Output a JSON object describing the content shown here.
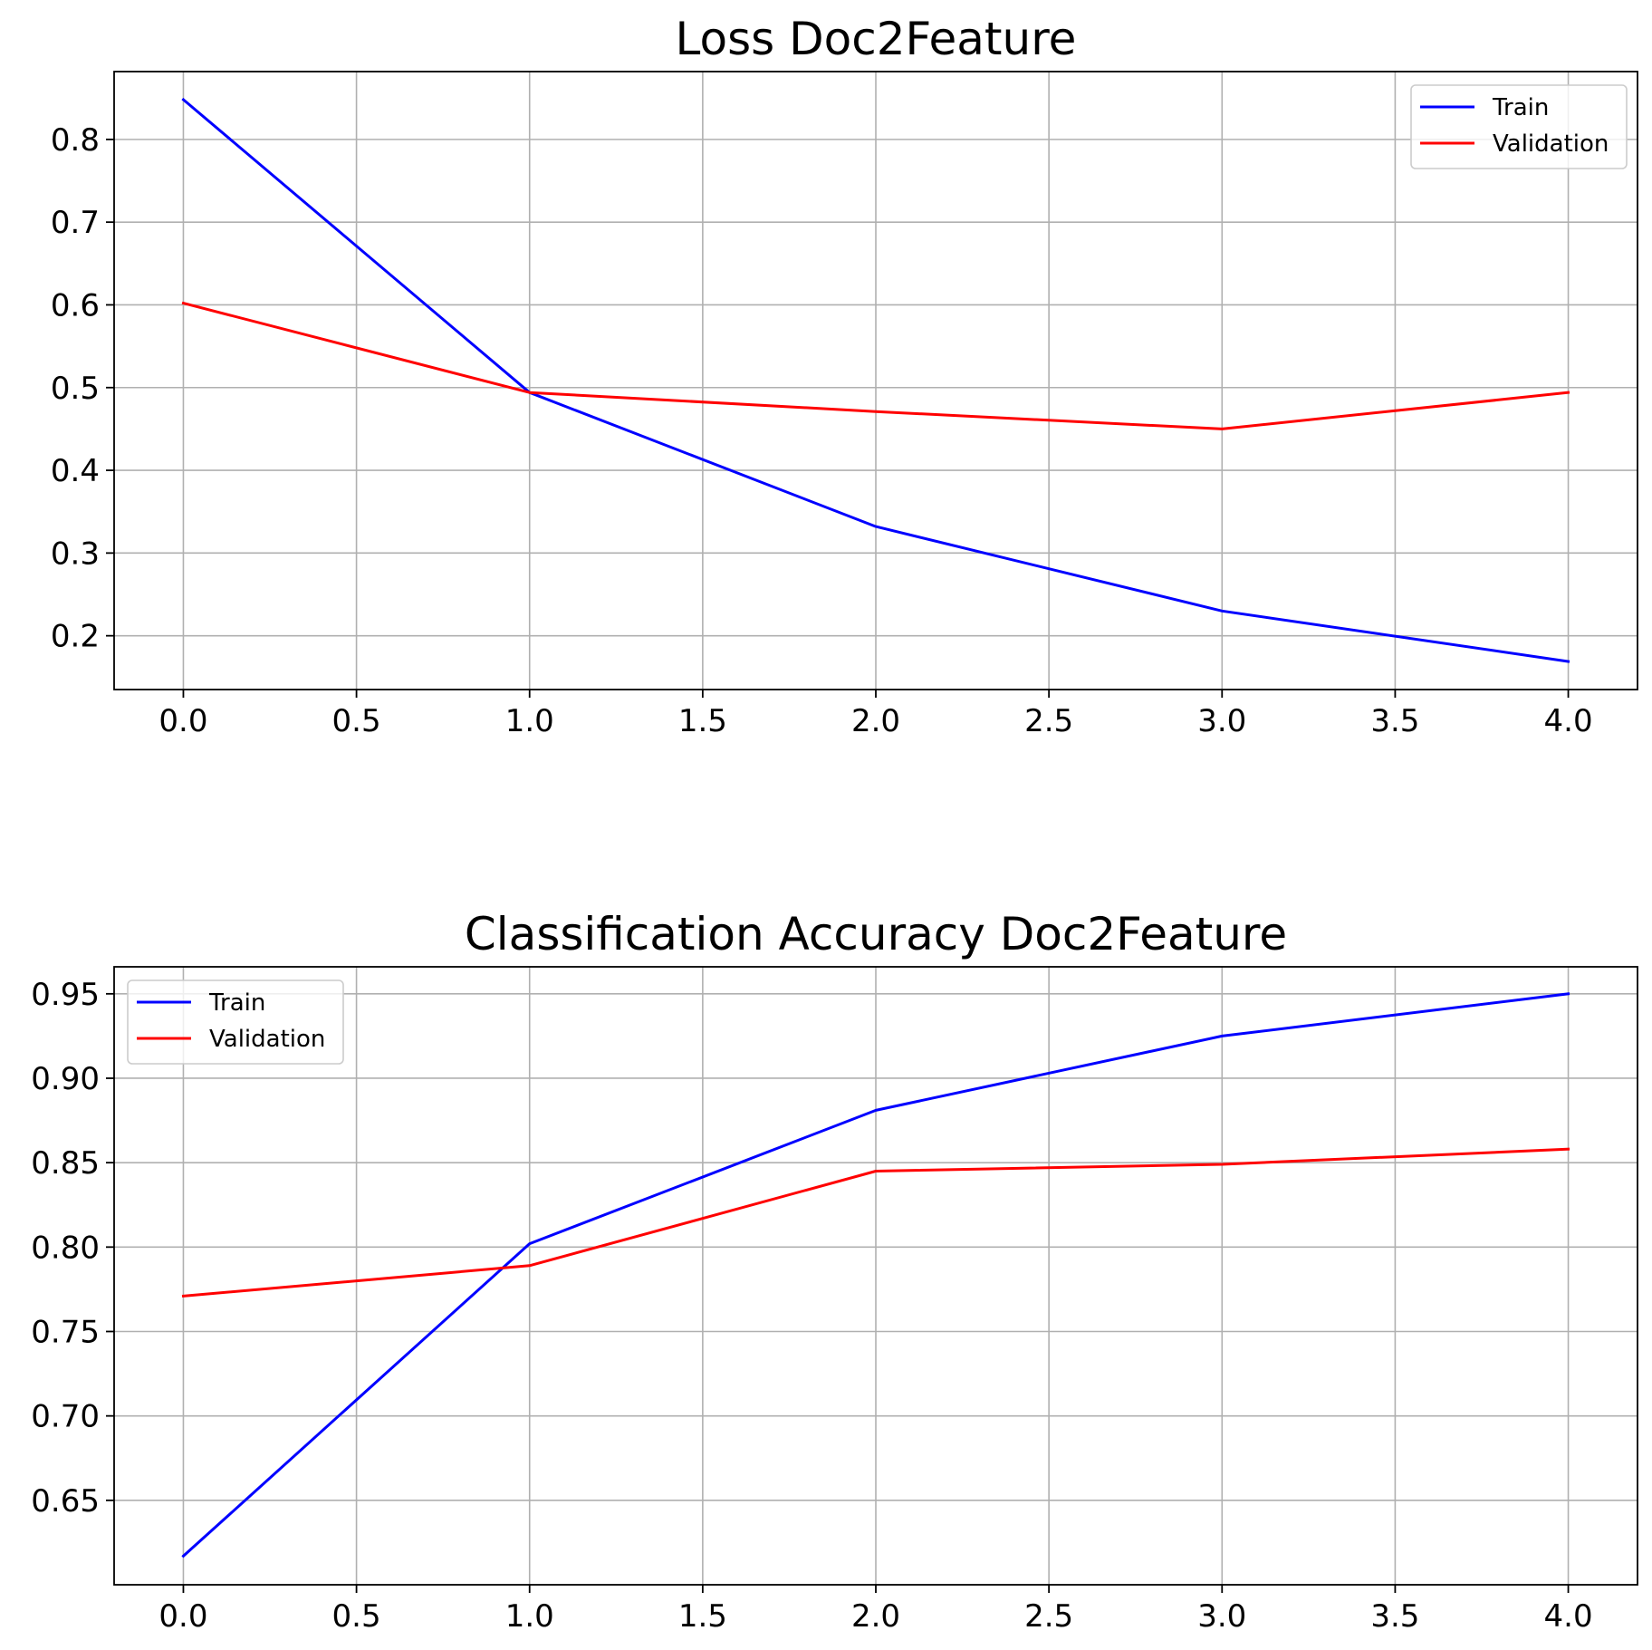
{
  "chart_data": [
    {
      "type": "line",
      "title": "Loss Doc2Feature",
      "xlabel": "",
      "ylabel": "",
      "xlim": [
        -0.2,
        4.2
      ],
      "ylim": [
        0.135,
        0.882
      ],
      "x_ticks": [
        0.0,
        0.5,
        1.0,
        1.5,
        2.0,
        2.5,
        3.0,
        3.5,
        4.0
      ],
      "x_tick_labels": [
        "0.0",
        "0.5",
        "1.0",
        "1.5",
        "2.0",
        "2.5",
        "3.0",
        "3.5",
        "4.0"
      ],
      "y_ticks": [
        0.2,
        0.3,
        0.4,
        0.5,
        0.6,
        0.7,
        0.8
      ],
      "y_tick_labels": [
        "0.2",
        "0.3",
        "0.4",
        "0.5",
        "0.6",
        "0.7",
        "0.8"
      ],
      "grid": true,
      "legend_position": "top-right",
      "x": [
        0,
        1,
        2,
        3,
        4
      ],
      "series": [
        {
          "name": "Train",
          "color": "#0000ff",
          "values": [
            0.848,
            0.494,
            0.332,
            0.23,
            0.169
          ]
        },
        {
          "name": "Validation",
          "color": "#ff0000",
          "values": [
            0.602,
            0.494,
            0.471,
            0.45,
            0.494
          ]
        }
      ]
    },
    {
      "type": "line",
      "title": "Classification Accuracy Doc2Feature",
      "xlabel": "",
      "ylabel": "",
      "xlim": [
        -0.2,
        4.2
      ],
      "ylim": [
        0.6,
        0.966
      ],
      "x_ticks": [
        0.0,
        0.5,
        1.0,
        1.5,
        2.0,
        2.5,
        3.0,
        3.5,
        4.0
      ],
      "x_tick_labels": [
        "0.0",
        "0.5",
        "1.0",
        "1.5",
        "2.0",
        "2.5",
        "3.0",
        "3.5",
        "4.0"
      ],
      "y_ticks": [
        0.65,
        0.7,
        0.75,
        0.8,
        0.85,
        0.9,
        0.95
      ],
      "y_tick_labels": [
        "0.65",
        "0.70",
        "0.75",
        "0.80",
        "0.85",
        "0.90",
        "0.95"
      ],
      "grid": true,
      "legend_position": "top-left",
      "x": [
        0,
        1,
        2,
        3,
        4
      ],
      "series": [
        {
          "name": "Train",
          "color": "#0000ff",
          "values": [
            0.617,
            0.802,
            0.881,
            0.925,
            0.95
          ]
        },
        {
          "name": "Validation",
          "color": "#ff0000",
          "values": [
            0.771,
            0.789,
            0.845,
            0.849,
            0.858
          ]
        }
      ]
    }
  ]
}
